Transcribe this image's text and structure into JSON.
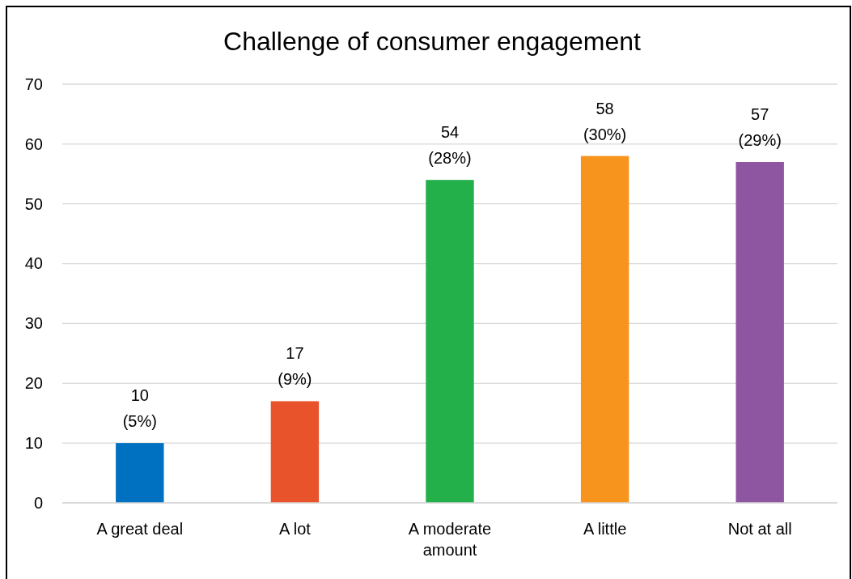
{
  "chart_data": {
    "type": "bar",
    "title": "Challenge of consumer engagement",
    "categories": [
      "A great deal",
      "A lot",
      "A moderate amount",
      "A little",
      "Not at all"
    ],
    "values": [
      10,
      17,
      54,
      58,
      57
    ],
    "colors": [
      "#0070c0",
      "#e8532b",
      "#23b04b",
      "#f7941d",
      "#8e55a0"
    ],
    "value_labels": [
      "10\n(5%)",
      "17\n(9%)",
      "54\n(28%)",
      "58\n(30%)",
      "57\n(29%)"
    ],
    "ylim": [
      0,
      70
    ],
    "yticks": [
      0,
      10,
      20,
      30,
      40,
      50,
      60,
      70
    ],
    "grid": "y"
  }
}
